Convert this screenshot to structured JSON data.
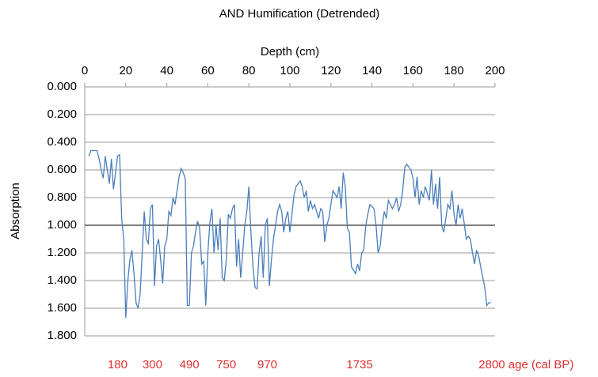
{
  "chart_data": {
    "type": "line",
    "title": "AND Humification (Detrended)",
    "x_label": "Depth (cm)",
    "y_label": "Absorption",
    "x": [
      2,
      3,
      4,
      5,
      6,
      7,
      8,
      9,
      10,
      11,
      12,
      13,
      14,
      15,
      16,
      17,
      18,
      19,
      20,
      21,
      22,
      23,
      24,
      25,
      26,
      27,
      28,
      29,
      30,
      31,
      32,
      33,
      34,
      35,
      36,
      37,
      38,
      39,
      40,
      41,
      42,
      43,
      44,
      45,
      46,
      47,
      48,
      49,
      50,
      51,
      52,
      53,
      54,
      55,
      56,
      57,
      58,
      59,
      60,
      61,
      62,
      63,
      64,
      65,
      66,
      67,
      68,
      69,
      70,
      71,
      72,
      73,
      74,
      75,
      76,
      77,
      78,
      79,
      80,
      81,
      82,
      83,
      84,
      85,
      86,
      87,
      88,
      89,
      90,
      91,
      92,
      93,
      94,
      95,
      96,
      97,
      98,
      99,
      100,
      101,
      102,
      103,
      105,
      106,
      107,
      108,
      109,
      110,
      111,
      112,
      114,
      115,
      116,
      117,
      118,
      119,
      120,
      121,
      123,
      124,
      125,
      126,
      127,
      128,
      129,
      130,
      132,
      133,
      134,
      135,
      136,
      137,
      138,
      139,
      141,
      142,
      143,
      144,
      145,
      146,
      147,
      148,
      150,
      151,
      152,
      153,
      154,
      155,
      156,
      157,
      159,
      160,
      161,
      162,
      163,
      164,
      165,
      166,
      168,
      169,
      170,
      171,
      172,
      173,
      174,
      175,
      177,
      178,
      179,
      180,
      181,
      182,
      183,
      184,
      186,
      187,
      188,
      189,
      190,
      191,
      192,
      193,
      195,
      196,
      197,
      198
    ],
    "series": [
      {
        "name": "Absorption",
        "color": "#4a7ebb",
        "values": [
          0.5,
          0.46,
          0.46,
          0.46,
          0.46,
          0.52,
          0.6,
          0.66,
          0.5,
          0.6,
          0.7,
          0.52,
          0.74,
          0.62,
          0.5,
          0.49,
          0.95,
          1.1,
          1.67,
          1.4,
          1.25,
          1.18,
          1.35,
          1.56,
          1.6,
          1.5,
          1.2,
          0.9,
          1.1,
          1.13,
          0.88,
          0.85,
          1.44,
          1.15,
          1.1,
          1.25,
          1.42,
          1.15,
          1.1,
          0.9,
          0.93,
          0.8,
          0.85,
          0.75,
          0.65,
          0.59,
          0.62,
          0.66,
          1.58,
          1.58,
          1.2,
          1.15,
          1.05,
          0.97,
          1.02,
          1.28,
          1.26,
          1.58,
          1.2,
          0.98,
          0.88,
          1.2,
          1.0,
          1.18,
          0.95,
          1.38,
          1.4,
          1.25,
          0.92,
          0.95,
          0.88,
          0.85,
          1.3,
          1.1,
          1.38,
          1.2,
          1.0,
          0.9,
          0.72,
          1.05,
          1.3,
          1.45,
          1.46,
          1.2,
          1.08,
          1.38,
          1.0,
          0.95,
          1.44,
          1.25,
          1.1,
          1.0,
          0.9,
          0.85,
          0.9,
          1.05,
          0.95,
          0.9,
          1.05,
          0.92,
          0.78,
          0.72,
          0.68,
          0.72,
          0.8,
          0.75,
          0.9,
          0.82,
          0.88,
          0.85,
          0.95,
          0.88,
          0.9,
          1.12,
          1.0,
          0.95,
          0.85,
          0.75,
          0.8,
          0.72,
          0.88,
          0.62,
          0.72,
          1.02,
          1.05,
          1.3,
          1.35,
          1.28,
          1.33,
          1.2,
          1.18,
          1.0,
          0.92,
          0.85,
          0.88,
          1.0,
          1.2,
          1.15,
          1.0,
          0.9,
          0.95,
          0.82,
          0.88,
          0.85,
          0.8,
          0.9,
          0.85,
          0.75,
          0.58,
          0.56,
          0.6,
          0.66,
          0.8,
          0.65,
          0.85,
          0.75,
          0.8,
          0.72,
          0.82,
          0.6,
          0.85,
          0.7,
          0.88,
          0.65,
          1.0,
          1.05,
          0.85,
          0.88,
          0.75,
          0.92,
          1.0,
          0.85,
          0.95,
          0.88,
          1.1,
          1.08,
          1.1,
          1.2,
          1.28,
          1.18,
          1.22,
          1.3,
          1.45,
          1.58,
          1.56,
          1.56
        ]
      }
    ],
    "xlim": [
      0,
      200
    ],
    "xticks": [
      0,
      20,
      40,
      60,
      80,
      100,
      120,
      140,
      160,
      180,
      200
    ],
    "ylim": [
      0,
      1.8
    ],
    "y_inverted": true,
    "yticks": [
      {
        "value": 0,
        "label": "0.000"
      },
      {
        "value": 0.2,
        "label": "0.200"
      },
      {
        "value": 0.4,
        "label": "0.400"
      },
      {
        "value": 0.6,
        "label": "0.600"
      },
      {
        "value": 0.8,
        "label": "0.800"
      },
      {
        "value": 1,
        "label": "1.000"
      },
      {
        "value": 1.2,
        "label": "1.200"
      },
      {
        "value": 1.4,
        "label": "1.400"
      },
      {
        "value": 1.6,
        "label": "1.600"
      },
      {
        "value": 1.8,
        "label": "1.800"
      }
    ],
    "grid": true,
    "reference_line": {
      "value": 1,
      "color": "#555555"
    },
    "annotation_color": "#e03030",
    "annotations": [
      {
        "text": "180",
        "x": 16
      },
      {
        "text": "300",
        "x": 33
      },
      {
        "text": "490",
        "x": 51
      },
      {
        "text": "750",
        "x": 69
      },
      {
        "text": "970",
        "x": 89
      },
      {
        "text": "1735",
        "x": 134
      },
      {
        "text": "2800 age (cal BP)",
        "x": 192,
        "anchor": "start"
      }
    ]
  }
}
